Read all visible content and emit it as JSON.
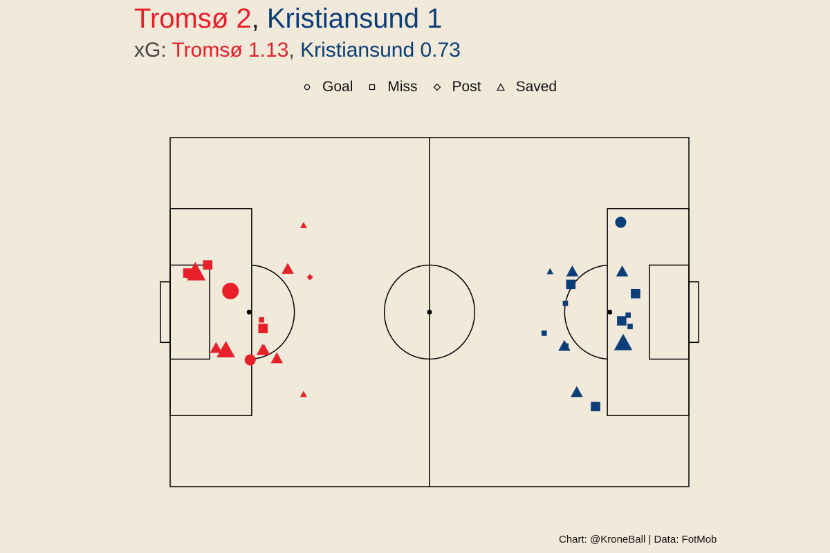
{
  "title": {
    "home_team": "Tromsø 2",
    "separator": ", ",
    "away_team": "Kristiansund 1"
  },
  "subtitle": {
    "prefix": "xG: ",
    "home_xg": "Tromsø 1.13",
    "separator": ", ",
    "away_xg": "Kristiansund 0.73"
  },
  "legend": [
    {
      "label": "Goal",
      "shape": "circle"
    },
    {
      "label": "Miss",
      "shape": "square"
    },
    {
      "label": "Post",
      "shape": "diamond"
    },
    {
      "label": "Saved",
      "shape": "triangle"
    }
  ],
  "credit": "Chart: @KroneBall | Data: FotMob",
  "colors": {
    "home": "#e8202a",
    "away": "#0b3d78",
    "background": "#f1e9d9",
    "lines": "#000000"
  },
  "chart_data": {
    "type": "scatter",
    "pitch": {
      "length": 105,
      "width": 68,
      "units": "m"
    },
    "series": [
      {
        "name": "Tromsø",
        "shots": [
          {
            "x": 3.6,
            "y": 41.6,
            "outcome": "Miss",
            "size": 2
          },
          {
            "x": 5.1,
            "y": 42.0,
            "outcome": "Saved",
            "size": 3
          },
          {
            "x": 5.3,
            "y": 41.6,
            "outcome": "Saved",
            "size": 3
          },
          {
            "x": 7.6,
            "y": 43.2,
            "outcome": "Miss",
            "size": 2
          },
          {
            "x": 12.2,
            "y": 38.1,
            "outcome": "Goal",
            "size": 3
          },
          {
            "x": 23.8,
            "y": 42.4,
            "outcome": "Saved",
            "size": 2
          },
          {
            "x": 28.3,
            "y": 40.8,
            "outcome": "Post",
            "size": 1
          },
          {
            "x": 27.0,
            "y": 50.9,
            "outcome": "Saved",
            "size": 1
          },
          {
            "x": 18.8,
            "y": 30.8,
            "outcome": "Miss",
            "size": 2
          },
          {
            "x": 18.7,
            "y": 26.6,
            "outcome": "Saved",
            "size": 2
          },
          {
            "x": 21.6,
            "y": 25.0,
            "outcome": "Saved",
            "size": 2
          },
          {
            "x": 19.0,
            "y": 26.6,
            "outcome": "Saved",
            "size": 2
          },
          {
            "x": 16.2,
            "y": 24.7,
            "outcome": "Goal",
            "size": 2
          },
          {
            "x": 27.0,
            "y": 18.0,
            "outcome": "Saved",
            "size": 1
          },
          {
            "x": 18.5,
            "y": 32.5,
            "outcome": "Miss",
            "size": 1
          },
          {
            "x": 10.8,
            "y": 26.4,
            "outcome": "Saved",
            "size": 2
          },
          {
            "x": 11.3,
            "y": 26.6,
            "outcome": "Saved",
            "size": 3
          },
          {
            "x": 9.3,
            "y": 27.0,
            "outcome": "Saved",
            "size": 2
          }
        ]
      },
      {
        "name": "Kristiansund",
        "shots": [
          {
            "x": 91.2,
            "y": 51.5,
            "outcome": "Goal",
            "size": 2
          },
          {
            "x": 76.9,
            "y": 41.9,
            "outcome": "Saved",
            "size": 1
          },
          {
            "x": 81.4,
            "y": 41.9,
            "outcome": "Saved",
            "size": 2
          },
          {
            "x": 91.5,
            "y": 41.9,
            "outcome": "Saved",
            "size": 2
          },
          {
            "x": 81.1,
            "y": 39.4,
            "outcome": "Miss",
            "size": 2
          },
          {
            "x": 94.2,
            "y": 37.6,
            "outcome": "Miss",
            "size": 2
          },
          {
            "x": 80.0,
            "y": 35.7,
            "outcome": "Miss",
            "size": 1
          },
          {
            "x": 92.7,
            "y": 33.4,
            "outcome": "Miss",
            "size": 1
          },
          {
            "x": 91.4,
            "y": 32.3,
            "outcome": "Miss",
            "size": 2
          },
          {
            "x": 93.1,
            "y": 31.2,
            "outcome": "Miss",
            "size": 1
          },
          {
            "x": 75.7,
            "y": 29.9,
            "outcome": "Miss",
            "size": 1
          },
          {
            "x": 91.7,
            "y": 28.0,
            "outcome": "Saved",
            "size": 3
          },
          {
            "x": 79.8,
            "y": 27.4,
            "outcome": "Saved",
            "size": 2
          },
          {
            "x": 80.1,
            "y": 27.4,
            "outcome": "Miss",
            "size": 1
          },
          {
            "x": 82.3,
            "y": 18.4,
            "outcome": "Saved",
            "size": 2
          },
          {
            "x": 86.1,
            "y": 15.6,
            "outcome": "Miss",
            "size": 2
          }
        ]
      }
    ]
  }
}
